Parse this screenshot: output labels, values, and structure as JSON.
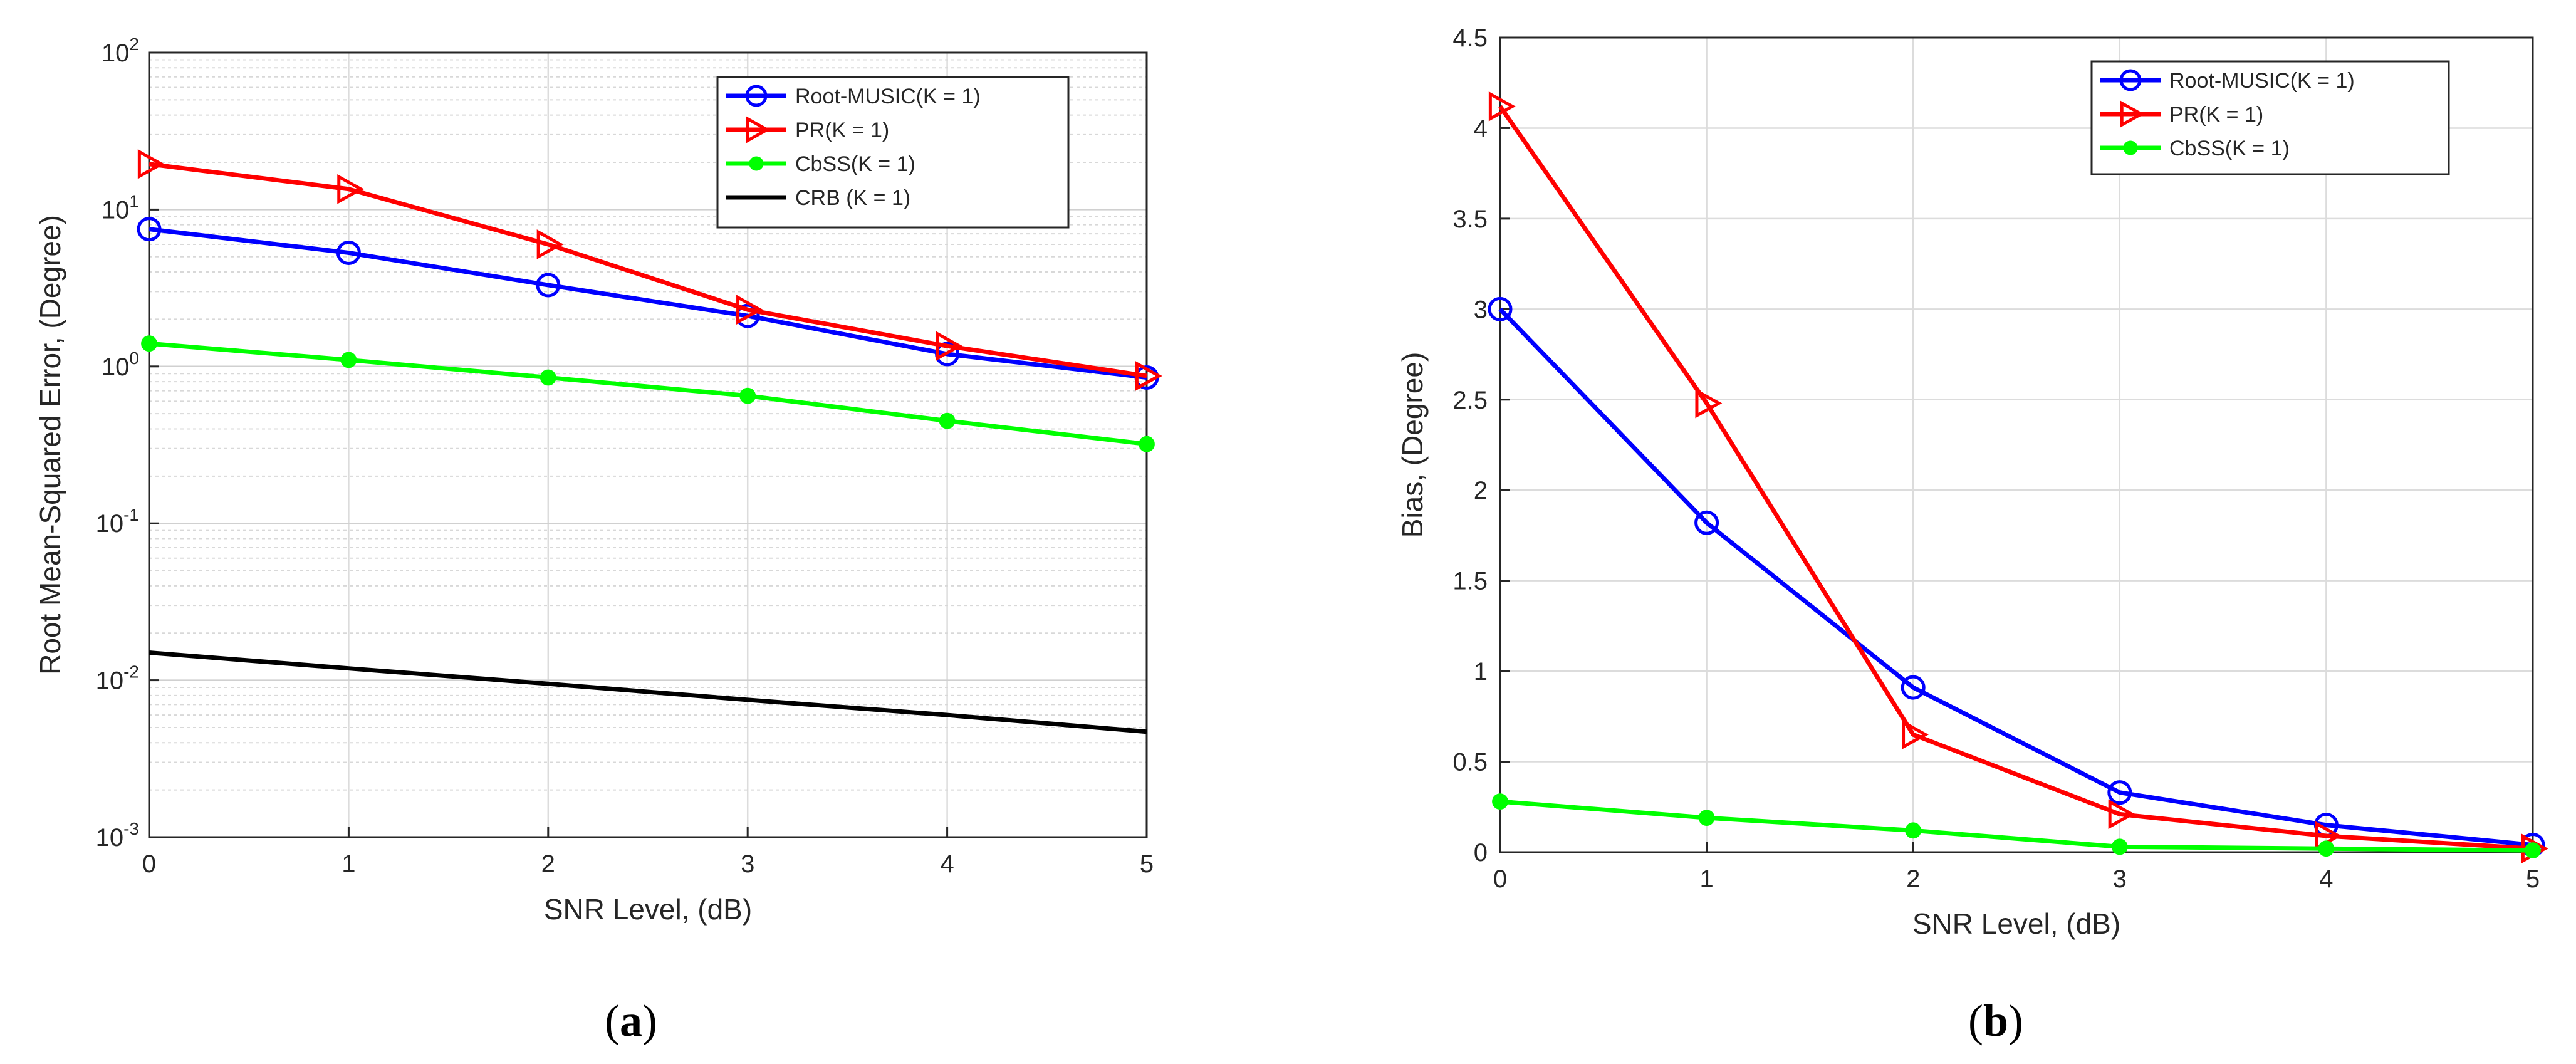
{
  "chart_data": [
    {
      "type": "line",
      "panel_label": "a",
      "yscale": "log",
      "xlabel": "SNR Level, (dB)",
      "ylabel": "Root Mean-Squared Error, (Degree)",
      "xlim": [
        0,
        5
      ],
      "ylim": [
        0.001,
        100
      ],
      "x_ticks": [
        "0",
        "1",
        "2",
        "3",
        "4",
        "5"
      ],
      "y_ticks": [
        {
          "value": 0.001,
          "base": "10",
          "exp": "-3"
        },
        {
          "value": 0.01,
          "base": "10",
          "exp": "-2"
        },
        {
          "value": 0.1,
          "base": "10",
          "exp": "-1"
        },
        {
          "value": 1,
          "base": "10",
          "exp": "0"
        },
        {
          "value": 10,
          "base": "10",
          "exp": "1"
        },
        {
          "value": 100,
          "base": "10",
          "exp": "2"
        }
      ],
      "grid": true,
      "legend_position": "top-right",
      "x": [
        0,
        1,
        2,
        3,
        4,
        5
      ],
      "series": [
        {
          "name": "Root-MUSIC(K = 1)",
          "color": "#0000ff",
          "marker": "circle",
          "values": [
            7.5,
            5.3,
            3.3,
            2.1,
            1.2,
            0.85
          ]
        },
        {
          "name": "PR(K = 1)",
          "color": "#ff0000",
          "marker": "triangle-right",
          "values": [
            19.5,
            13.5,
            6.0,
            2.3,
            1.35,
            0.87
          ]
        },
        {
          "name": "CbSS(K = 1)",
          "color": "#00ff00",
          "marker": "dot",
          "values": [
            1.4,
            1.1,
            0.85,
            0.65,
            0.45,
            0.32
          ]
        },
        {
          "name": "CRB (K = 1)",
          "color": "#000000",
          "marker": "none",
          "values": [
            0.015,
            0.0119,
            0.0095,
            0.0075,
            0.006,
            0.0047
          ]
        }
      ]
    },
    {
      "type": "line",
      "panel_label": "b",
      "yscale": "linear",
      "xlabel": "SNR Level, (dB)",
      "ylabel": "Bias, (Degree)",
      "xlim": [
        0,
        5
      ],
      "ylim": [
        0,
        4.5
      ],
      "x_ticks": [
        "0",
        "1",
        "2",
        "3",
        "4",
        "5"
      ],
      "y_ticks": [
        "0",
        "0.5",
        "1",
        "1.5",
        "2",
        "2.5",
        "3",
        "3.5",
        "4",
        "4.5"
      ],
      "grid": true,
      "legend_position": "top-right",
      "x": [
        0,
        1,
        2,
        3,
        4,
        5
      ],
      "series": [
        {
          "name": "Root-MUSIC(K = 1)",
          "color": "#0000ff",
          "marker": "circle",
          "values": [
            3.0,
            1.82,
            0.91,
            0.33,
            0.15,
            0.04
          ]
        },
        {
          "name": "PR(K = 1)",
          "color": "#ff0000",
          "marker": "triangle-right",
          "values": [
            4.12,
            2.48,
            0.65,
            0.21,
            0.09,
            0.02
          ]
        },
        {
          "name": "CbSS(K = 1)",
          "color": "#00ff00",
          "marker": "dot",
          "values": [
            0.28,
            0.19,
            0.12,
            0.03,
            0.02,
            0.01
          ]
        }
      ]
    }
  ]
}
